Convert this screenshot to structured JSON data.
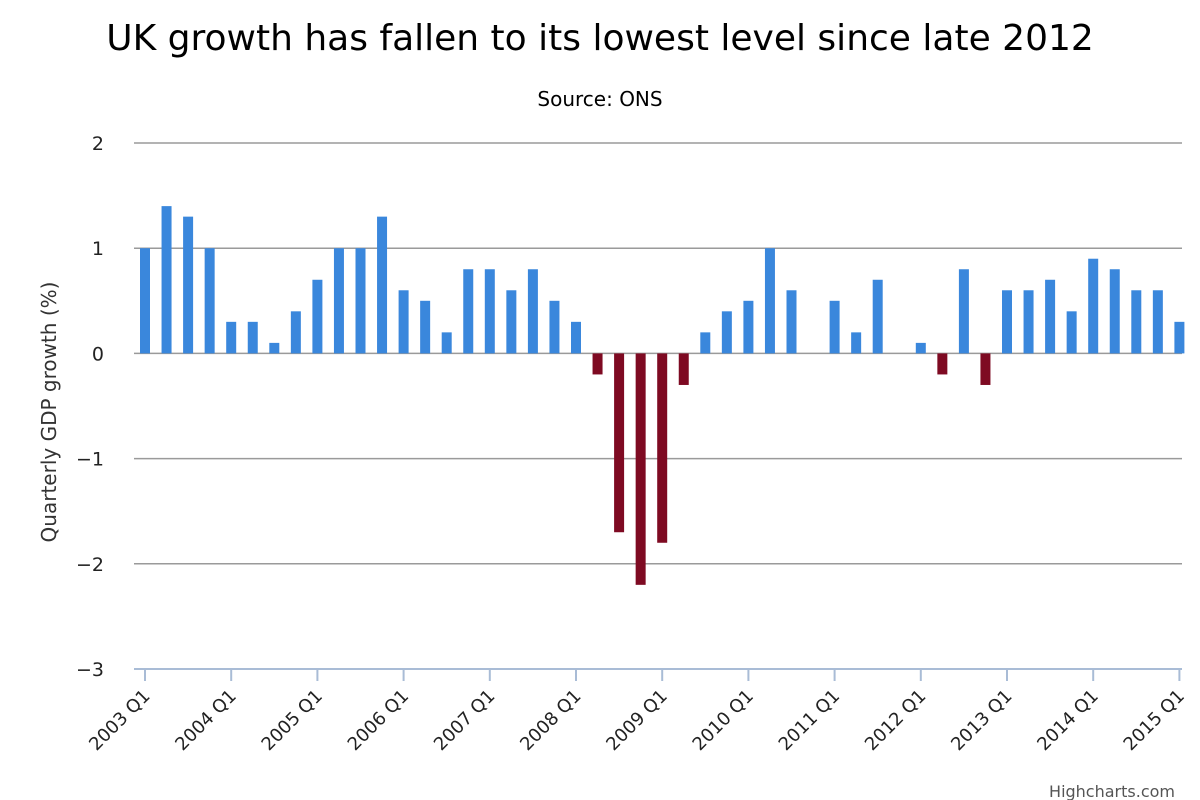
{
  "chart_data": {
    "type": "bar",
    "title": "UK growth has fallen to its lowest level since late 2012",
    "subtitle": "Source: ONS",
    "ylabel": "Quarterly GDP growth (%)",
    "xlabel": "",
    "ylim": [
      -3,
      2
    ],
    "y_ticks": [
      "2",
      "1",
      "0",
      "−1",
      "−2",
      "−3"
    ],
    "y_tick_values": [
      2,
      1,
      0,
      -1,
      -2,
      -3
    ],
    "x_tick_labels": [
      "2003 Q1",
      "2004 Q1",
      "2005 Q1",
      "2006 Q1",
      "2007 Q1",
      "2008 Q1",
      "2009 Q1",
      "2010 Q1",
      "2011 Q1",
      "2012 Q1",
      "2013 Q1",
      "2014 Q1",
      "2015 Q1"
    ],
    "grid": true,
    "categories": [
      "2003 Q1",
      "2003 Q2",
      "2003 Q3",
      "2003 Q4",
      "2004 Q1",
      "2004 Q2",
      "2004 Q3",
      "2004 Q4",
      "2005 Q1",
      "2005 Q2",
      "2005 Q3",
      "2005 Q4",
      "2006 Q1",
      "2006 Q2",
      "2006 Q3",
      "2006 Q4",
      "2007 Q1",
      "2007 Q2",
      "2007 Q3",
      "2007 Q4",
      "2008 Q1",
      "2008 Q2",
      "2008 Q3",
      "2008 Q4",
      "2009 Q1",
      "2009 Q2",
      "2009 Q3",
      "2009 Q4",
      "2010 Q1",
      "2010 Q2",
      "2010 Q3",
      "2010 Q4",
      "2011 Q1",
      "2011 Q2",
      "2011 Q3",
      "2011 Q4",
      "2012 Q1",
      "2012 Q2",
      "2012 Q3",
      "2012 Q4",
      "2013 Q1",
      "2013 Q2",
      "2013 Q3",
      "2013 Q4",
      "2014 Q1",
      "2014 Q2",
      "2014 Q3",
      "2014 Q4",
      "2015 Q1"
    ],
    "values": [
      1.0,
      1.4,
      1.3,
      1.0,
      0.3,
      0.3,
      0.1,
      0.4,
      0.7,
      1.0,
      1.0,
      1.3,
      0.6,
      0.5,
      0.2,
      0.8,
      0.8,
      0.6,
      0.8,
      0.5,
      0.3,
      -0.2,
      -1.7,
      -2.2,
      -1.8,
      -0.3,
      0.2,
      0.4,
      0.5,
      1.0,
      0.6,
      0.0,
      0.5,
      0.2,
      0.7,
      0.0,
      0.1,
      -0.2,
      0.8,
      -0.3,
      0.6,
      0.6,
      0.7,
      0.4,
      0.9,
      0.8,
      0.6,
      0.6,
      0.3
    ],
    "colors": {
      "positive": "#3a87dc",
      "negative": "#7e0a22",
      "grid": "#9a9a9a",
      "axis": "#a9bcd6"
    }
  },
  "credits": "Highcharts.com"
}
